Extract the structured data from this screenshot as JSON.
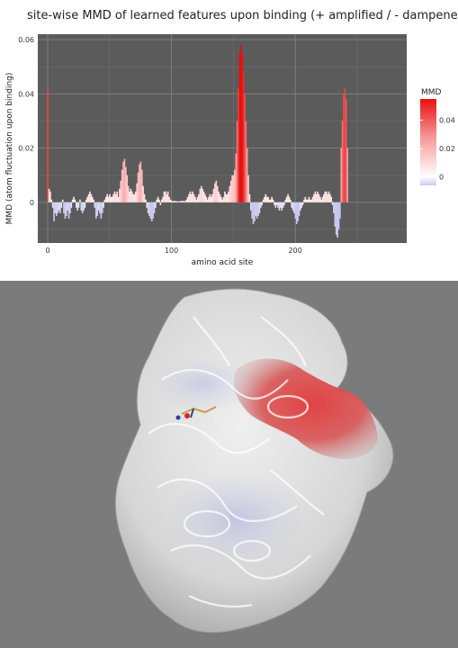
{
  "chart_data": {
    "type": "bar",
    "title": "site-wise MMD of learned features upon binding  (+ amplified / - dampened)",
    "xlabel": "amino acid site",
    "ylabel": "MMD (atom fluctuation upon binding)",
    "xlim": [
      -8,
      290
    ],
    "ylim": [
      -0.015,
      0.062
    ],
    "x_ticks": [
      0,
      100,
      200
    ],
    "y_ticks": [
      0,
      0.02,
      0.04,
      0.06
    ],
    "y_tick_labels": [
      "0",
      "0.02",
      "0.04",
      "0.06"
    ],
    "grid": true,
    "legend": {
      "title": "MMD",
      "position": "right",
      "ticks": [
        0.04,
        0.02,
        0
      ],
      "tick_labels": [
        "0.04",
        "0.02",
        "0"
      ],
      "range": [
        -0.006,
        0.055
      ]
    },
    "values": [
      0.042,
      0.005,
      0.004,
      0.001,
      -0.002,
      -0.007,
      -0.004,
      -0.005,
      -0.004,
      -0.003,
      -0.004,
      -0.002,
      0.001,
      -0.004,
      -0.006,
      -0.005,
      -0.003,
      -0.006,
      -0.004,
      -0.002,
      0.001,
      0.002,
      0.001,
      -0.002,
      -0.003,
      -0.002,
      0.001,
      -0.003,
      -0.004,
      -0.003,
      -0.002,
      0.001,
      0.002,
      0.003,
      0.004,
      0.003,
      0.002,
      0.001,
      -0.002,
      -0.006,
      -0.005,
      -0.003,
      -0.004,
      -0.006,
      -0.004,
      -0.002,
      0.001,
      0.002,
      0.003,
      0.002,
      0.003,
      0.002,
      0.002,
      0.003,
      0.004,
      0.003,
      0.004,
      0.002,
      0.005,
      0.008,
      0.012,
      0.015,
      0.016,
      0.013,
      0.01,
      0.006,
      0.004,
      0.005,
      0.004,
      0.003,
      0.003,
      0.004,
      0.007,
      0.011,
      0.014,
      0.015,
      0.012,
      0.006,
      0.003,
      0.001,
      -0.002,
      -0.004,
      -0.005,
      -0.006,
      -0.007,
      -0.006,
      -0.004,
      -0.002,
      0.001,
      0.002,
      0.001,
      -0.001,
      0.001,
      0.002,
      0.004,
      0.004,
      0.003,
      0.004,
      0.002,
      0.001,
      0.0005,
      0.0005,
      0.0005,
      0.0005,
      0.0004,
      0.0003,
      0.0004,
      0.0004,
      0.0005,
      0.0005,
      0.0005,
      0.0004,
      0.001,
      0.002,
      0.003,
      0.004,
      0.003,
      0.004,
      0.003,
      0.002,
      0.001,
      0.002,
      0.003,
      0.005,
      0.006,
      0.005,
      0.004,
      0.003,
      0.002,
      0.001,
      0.002,
      0.003,
      0.002,
      0.003,
      0.005,
      0.007,
      0.008,
      0.006,
      0.004,
      0.003,
      0.002,
      0.001,
      0.002,
      0.004,
      0.003,
      0.003,
      0.004,
      0.006,
      0.008,
      0.01,
      0.01,
      0.012,
      0.018,
      0.03,
      0.042,
      0.055,
      0.058,
      0.055,
      0.048,
      0.04,
      0.03,
      0.02,
      0.01,
      0.003,
      -0.003,
      -0.006,
      -0.008,
      -0.007,
      -0.005,
      -0.006,
      -0.005,
      -0.004,
      -0.002,
      -0.001,
      0.001,
      0.002,
      0.003,
      0.002,
      0.002,
      0.001,
      0.001,
      0.002,
      0.001,
      -0.001,
      -0.002,
      -0.001,
      -0.002,
      -0.003,
      -0.002,
      -0.003,
      -0.002,
      -0.001,
      0.001,
      0.002,
      0.003,
      0.002,
      0.001,
      -0.002,
      -0.003,
      -0.004,
      -0.006,
      -0.008,
      -0.007,
      -0.005,
      -0.003,
      -0.002,
      -0.001,
      0.001,
      0.002,
      0.001,
      0.001,
      0.002,
      0.001,
      0.001,
      0.002,
      0.003,
      0.004,
      0.003,
      0.004,
      0.003,
      0.002,
      0.001,
      0.002,
      0.003,
      0.004,
      0.004,
      0.003,
      0.004,
      0.003,
      0.002,
      -0.001,
      -0.004,
      -0.009,
      -0.012,
      -0.013,
      -0.01,
      -0.006,
      0.02,
      0.03,
      0.04,
      0.042,
      0.038,
      0.02
    ]
  }
}
